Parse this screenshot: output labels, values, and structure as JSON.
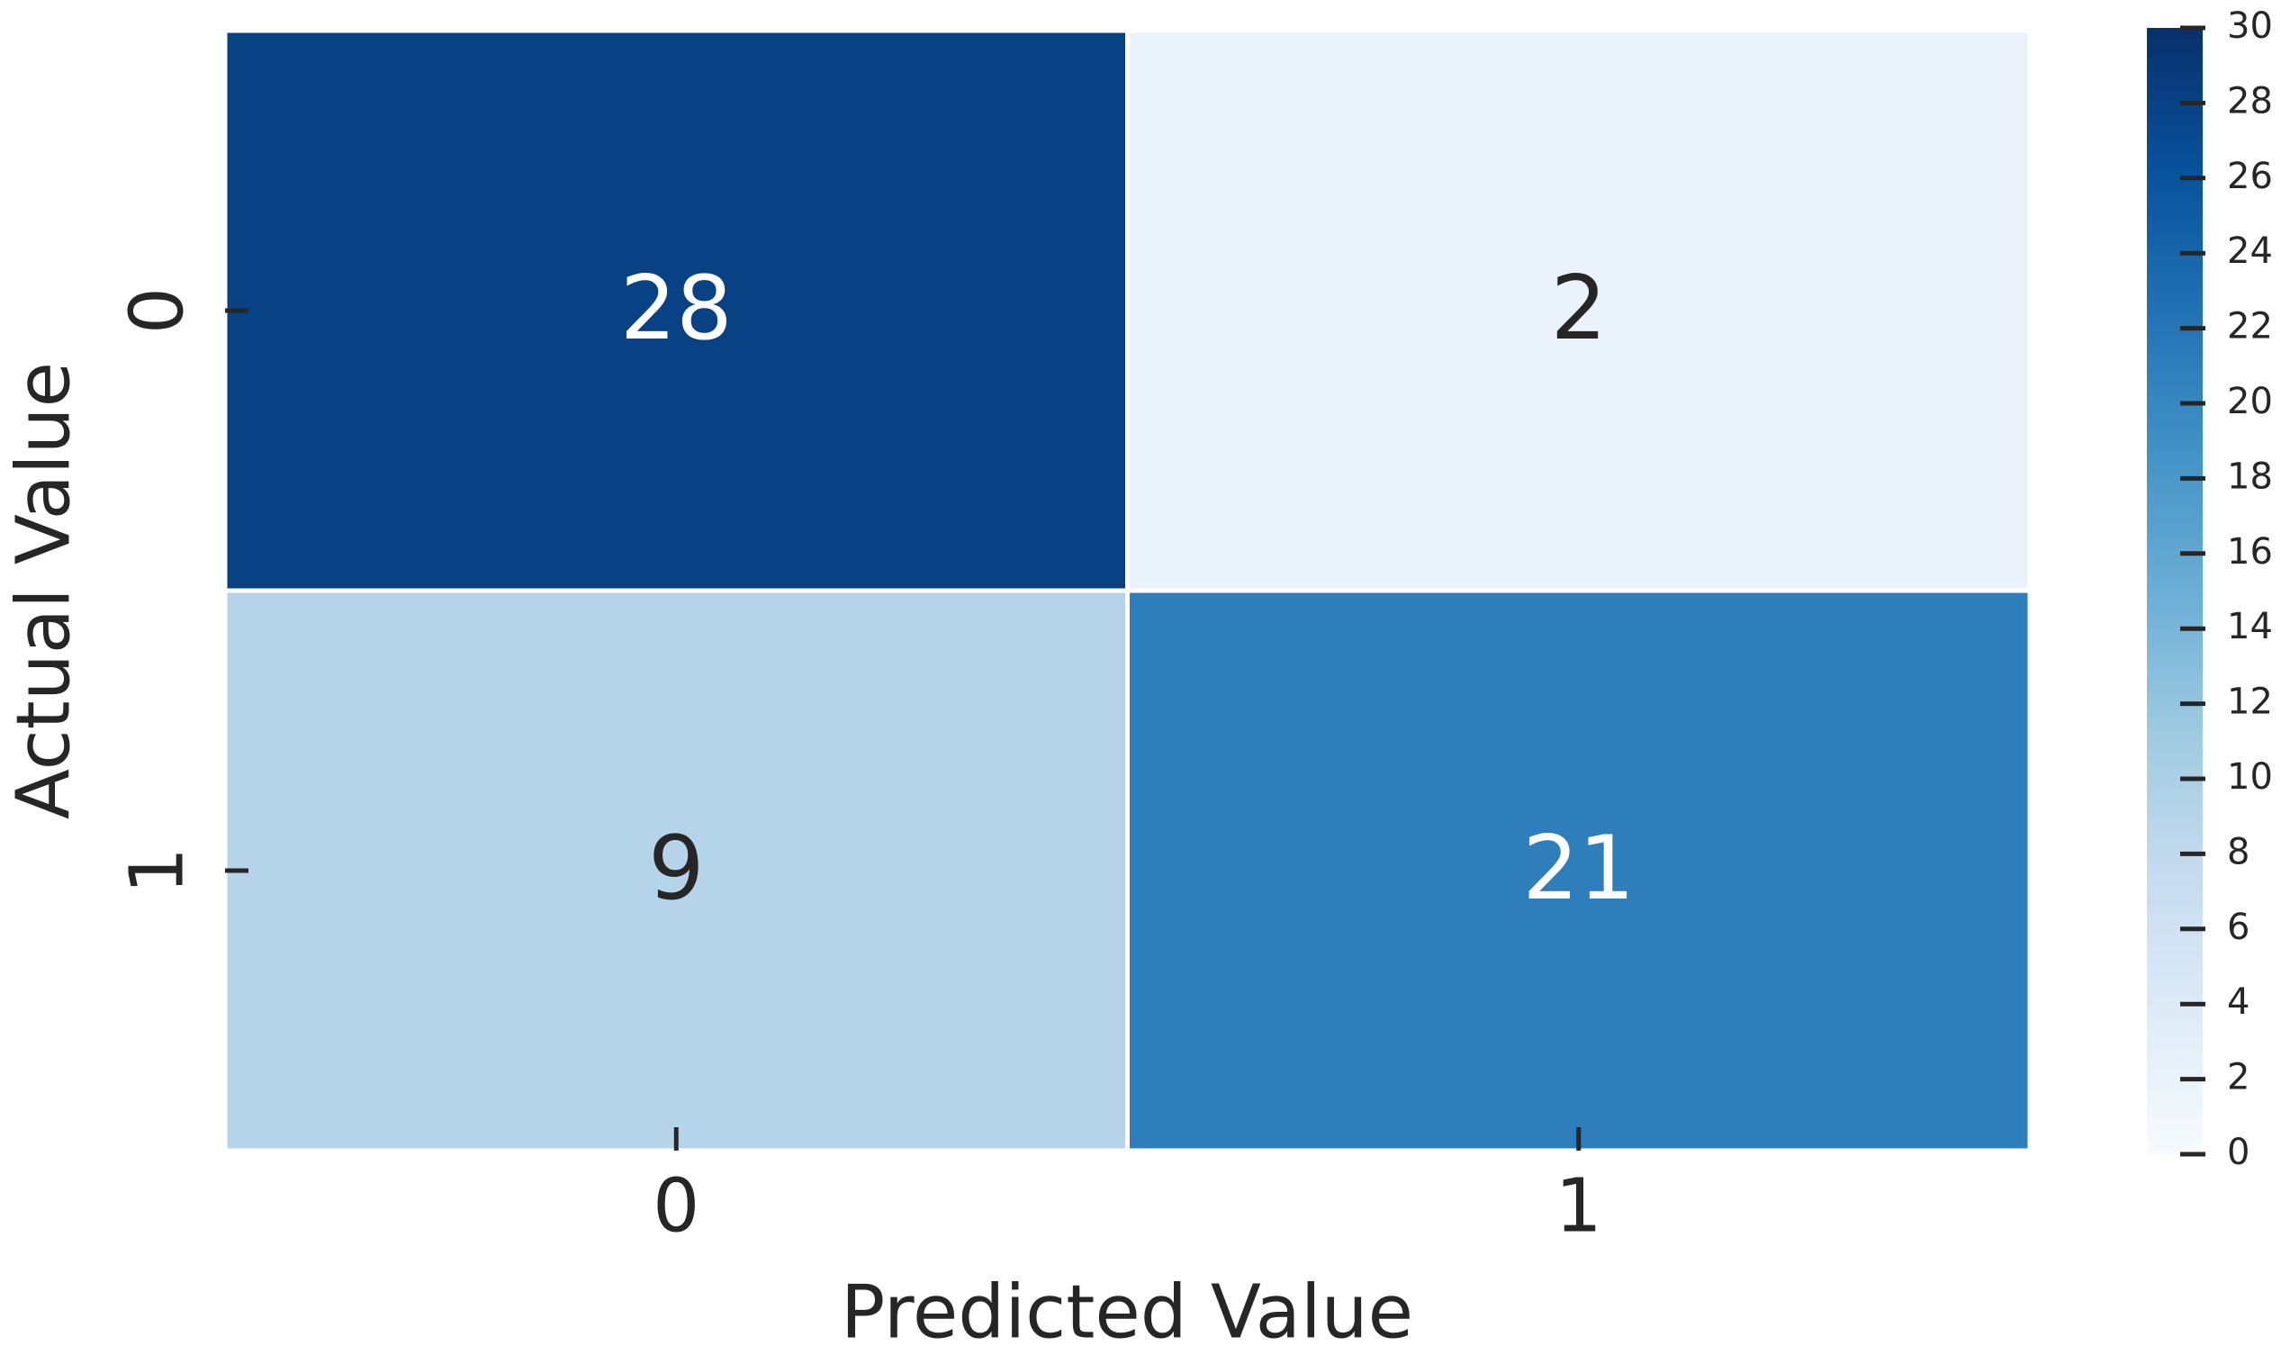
{
  "chart_data": {
    "type": "heatmap",
    "x_label": "Predicted Value",
    "y_label": "Actual Value",
    "x_categories": [
      "0",
      "1"
    ],
    "y_categories": [
      "0",
      "1"
    ],
    "values": [
      [
        28,
        2
      ],
      [
        9,
        21
      ]
    ],
    "colormap": "Blues",
    "clim": [
      0,
      30
    ],
    "cticks": [
      0,
      2,
      4,
      6,
      8,
      10,
      12,
      14,
      16,
      18,
      20,
      22,
      24,
      26,
      28,
      30
    ]
  }
}
